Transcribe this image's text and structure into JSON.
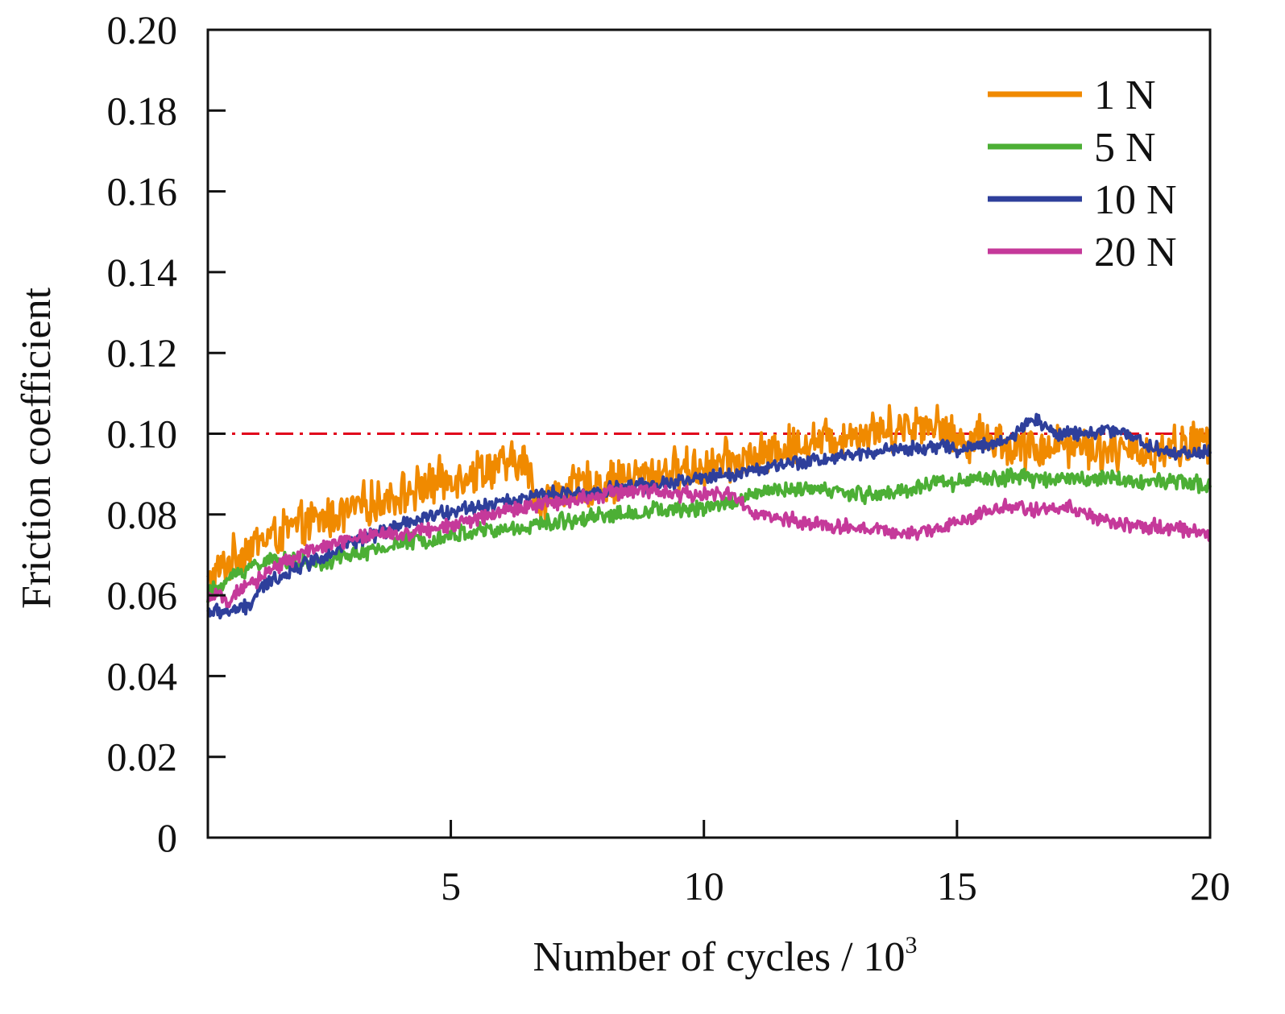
{
  "chart_data": {
    "type": "line",
    "title": "",
    "xlabel": "Number of cycles / 10",
    "xlabel_superscript": "3",
    "ylabel": "Friction coefficient",
    "xlim": [
      0.2,
      20
    ],
    "ylim": [
      0,
      0.2
    ],
    "xticks": [
      5,
      10,
      15,
      20
    ],
    "yticks": [
      0,
      0.02,
      0.04,
      0.06,
      0.08,
      0.1,
      0.12,
      0.14,
      0.16,
      0.18,
      0.2
    ],
    "ytick_labels": [
      "0",
      "0.02",
      "0.04",
      "0.06",
      "0.08",
      "0.10",
      "0.12",
      "0.14",
      "0.16",
      "0.18",
      "0.20"
    ],
    "grid": false,
    "legend_position": "top-right",
    "reference_line": {
      "y": 0.1,
      "style": "dash-dot",
      "color": "#e0001b"
    },
    "series": [
      {
        "name": "1 N",
        "color": "#f08a00",
        "noise": 0.0065,
        "x": [
          0.2,
          0.6,
          1.0,
          1.5,
          2.0,
          2.5,
          3.0,
          3.5,
          4.0,
          4.5,
          5.0,
          5.5,
          6.0,
          6.5,
          6.7,
          7.0,
          7.5,
          8.0,
          8.5,
          9.0,
          9.5,
          10.0,
          10.5,
          11.0,
          11.5,
          12.0,
          12.5,
          13.0,
          13.5,
          14.0,
          14.5,
          15.0,
          15.5,
          16.0,
          16.5,
          17.0,
          17.5,
          18.0,
          18.5,
          19.0,
          19.5,
          20.0
        ],
        "y": [
          0.063,
          0.068,
          0.072,
          0.075,
          0.077,
          0.079,
          0.081,
          0.083,
          0.085,
          0.087,
          0.089,
          0.091,
          0.092,
          0.093,
          0.083,
          0.085,
          0.087,
          0.088,
          0.089,
          0.09,
          0.091,
          0.092,
          0.093,
          0.094,
          0.096,
          0.098,
          0.099,
          0.1,
          0.101,
          0.102,
          0.103,
          0.098,
          0.1,
          0.097,
          0.096,
          0.098,
          0.097,
          0.096,
          0.095,
          0.096,
          0.097,
          0.099
        ]
      },
      {
        "name": "5 N",
        "color": "#4caf35",
        "noise": 0.0025,
        "x": [
          0.2,
          0.6,
          1.0,
          1.5,
          2.0,
          2.5,
          3.0,
          3.5,
          4.0,
          4.5,
          5.0,
          5.5,
          6.0,
          6.5,
          7.0,
          7.5,
          8.0,
          8.5,
          9.0,
          9.5,
          10.0,
          10.5,
          11.0,
          11.5,
          12.0,
          12.5,
          13.0,
          13.5,
          14.0,
          14.5,
          15.0,
          15.5,
          16.0,
          16.5,
          17.0,
          17.5,
          18.0,
          18.5,
          19.0,
          19.5,
          20.0
        ],
        "y": [
          0.06,
          0.064,
          0.067,
          0.069,
          0.068,
          0.068,
          0.07,
          0.071,
          0.073,
          0.074,
          0.075,
          0.076,
          0.076,
          0.077,
          0.078,
          0.079,
          0.08,
          0.08,
          0.081,
          0.081,
          0.082,
          0.083,
          0.085,
          0.086,
          0.086,
          0.086,
          0.085,
          0.085,
          0.086,
          0.088,
          0.088,
          0.089,
          0.089,
          0.089,
          0.089,
          0.089,
          0.089,
          0.088,
          0.088,
          0.088,
          0.087
        ]
      },
      {
        "name": "10 N",
        "color": "#2e3f9b",
        "noise": 0.0022,
        "x": [
          0.2,
          0.6,
          1.0,
          1.2,
          1.5,
          2.0,
          2.5,
          3.0,
          3.5,
          4.0,
          4.5,
          5.0,
          5.5,
          6.0,
          6.5,
          7.0,
          7.5,
          8.0,
          8.5,
          9.0,
          9.5,
          10.0,
          10.5,
          11.0,
          11.5,
          12.0,
          12.5,
          13.0,
          13.5,
          14.0,
          14.5,
          15.0,
          15.5,
          16.0,
          16.5,
          17.0,
          17.5,
          18.0,
          18.5,
          19.0,
          19.5,
          20.0
        ],
        "y": [
          0.056,
          0.056,
          0.057,
          0.061,
          0.064,
          0.067,
          0.07,
          0.073,
          0.075,
          0.077,
          0.079,
          0.081,
          0.082,
          0.083,
          0.084,
          0.085,
          0.085,
          0.086,
          0.087,
          0.087,
          0.088,
          0.089,
          0.09,
          0.091,
          0.092,
          0.093,
          0.094,
          0.095,
          0.096,
          0.096,
          0.097,
          0.096,
          0.097,
          0.098,
          0.104,
          0.1,
          0.1,
          0.101,
          0.099,
          0.096,
          0.095,
          0.096
        ]
      },
      {
        "name": "20 N",
        "color": "#c5399a",
        "noise": 0.0022,
        "x": [
          0.2,
          0.6,
          1.0,
          1.5,
          2.0,
          2.5,
          3.0,
          3.5,
          4.0,
          4.5,
          5.0,
          5.5,
          6.0,
          6.5,
          7.0,
          7.5,
          8.0,
          8.5,
          9.0,
          9.5,
          10.0,
          10.5,
          11.0,
          11.5,
          12.0,
          12.5,
          13.0,
          13.5,
          14.0,
          14.5,
          15.0,
          15.5,
          16.0,
          16.5,
          17.0,
          17.5,
          18.0,
          18.5,
          19.0,
          19.5,
          20.0
        ],
        "y": [
          0.06,
          0.059,
          0.062,
          0.067,
          0.07,
          0.072,
          0.074,
          0.075,
          0.075,
          0.076,
          0.077,
          0.079,
          0.081,
          0.082,
          0.083,
          0.084,
          0.085,
          0.086,
          0.086,
          0.085,
          0.085,
          0.085,
          0.08,
          0.079,
          0.078,
          0.077,
          0.077,
          0.076,
          0.075,
          0.076,
          0.078,
          0.08,
          0.082,
          0.081,
          0.082,
          0.081,
          0.078,
          0.077,
          0.077,
          0.076,
          0.075
        ]
      }
    ]
  }
}
